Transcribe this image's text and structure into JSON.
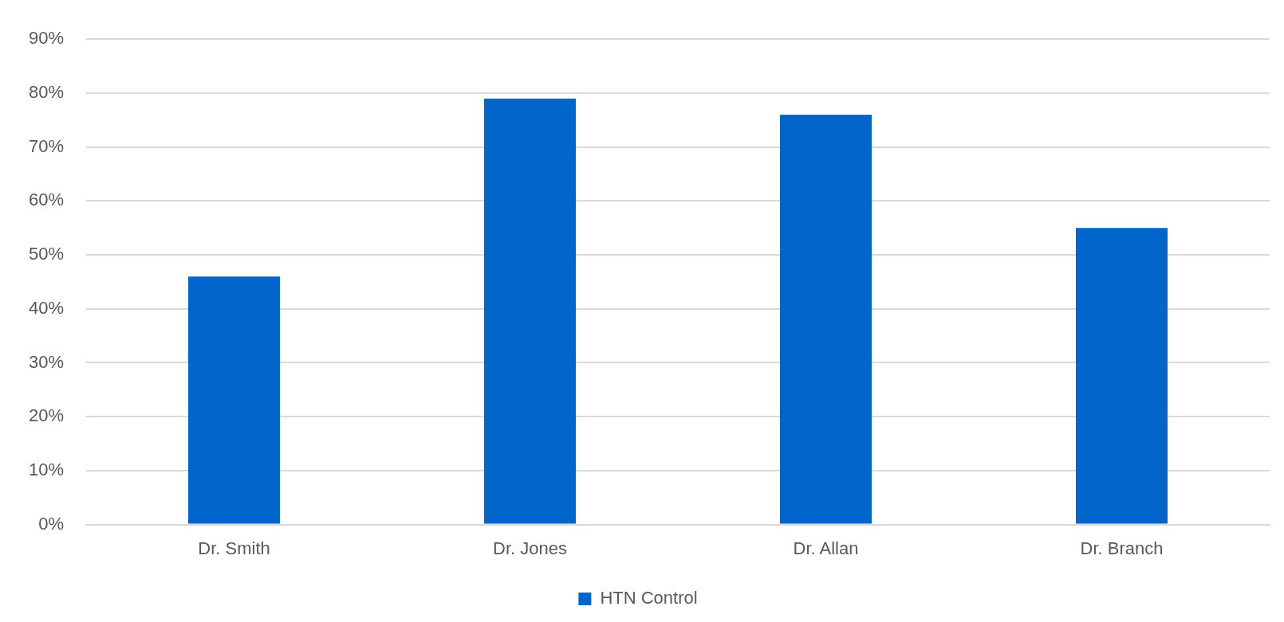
{
  "chart_data": {
    "type": "bar",
    "categories": [
      "Dr. Smith",
      "Dr. Jones",
      "Dr. Allan",
      "Dr. Branch"
    ],
    "series": [
      {
        "name": "HTN Control",
        "color": "#0066cc",
        "values": [
          46,
          79,
          76,
          55
        ]
      }
    ],
    "ylim": [
      0,
      90
    ],
    "yticks": [
      {
        "value": 0,
        "label": "0%"
      },
      {
        "value": 10,
        "label": "10%"
      },
      {
        "value": 20,
        "label": "20%"
      },
      {
        "value": 30,
        "label": "30%"
      },
      {
        "value": 40,
        "label": "40%"
      },
      {
        "value": 50,
        "label": "50%"
      },
      {
        "value": 60,
        "label": "60%"
      },
      {
        "value": 70,
        "label": "70%"
      },
      {
        "value": 80,
        "label": "80%"
      },
      {
        "value": 90,
        "label": "90%"
      }
    ],
    "grid": "y",
    "legend": "bottom"
  }
}
